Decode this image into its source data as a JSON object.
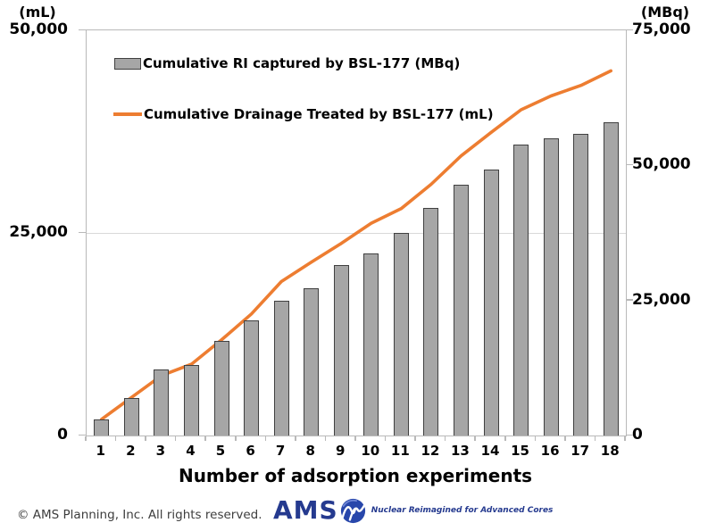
{
  "axes": {
    "left": {
      "unit": "(mL)",
      "ticks": [
        "50,000",
        "25,000",
        "0"
      ]
    },
    "right": {
      "unit": "(MBq)",
      "ticks": [
        "75,000",
        "50,000",
        "25,000",
        "0"
      ]
    },
    "x": {
      "title": "Number of adsorption experiments"
    }
  },
  "legend": {
    "bar_label": "Cumulative RI captured by BSL-177 (MBq)",
    "line_label": "Cumulative Drainage Treated by BSL-177 (mL)"
  },
  "chart_data": {
    "type": "combo bar+line, dual axis",
    "categories": [
      "1",
      "2",
      "3",
      "4",
      "5",
      "6",
      "7",
      "8",
      "9",
      "10",
      "11",
      "12",
      "13",
      "14",
      "15",
      "16",
      "17",
      "18"
    ],
    "series": [
      {
        "name": "Cumulative RI captured by BSL-177 (MBq)",
        "type": "bar",
        "axis": "right",
        "color": "#a6a6a6",
        "border_color": "#404040",
        "values": [
          2900,
          7000,
          12300,
          13000,
          17500,
          21300,
          24900,
          27300,
          31600,
          33700,
          37500,
          42200,
          46500,
          49200,
          53800,
          55000,
          55800,
          58000
        ]
      },
      {
        "name": "Cumulative Drainage Treated by BSL-177 (mL)",
        "type": "line",
        "axis": "left",
        "color": "#ed7d31",
        "values": [
          2000,
          4700,
          7400,
          8800,
          11800,
          15000,
          19000,
          21400,
          23700,
          26200,
          28000,
          31000,
          34500,
          37400,
          40200,
          41900,
          43200,
          45000
        ]
      }
    ],
    "left_axis": {
      "label": "(mL)",
      "range": [
        0,
        50000
      ],
      "tick_step": 25000
    },
    "right_axis": {
      "label": "(MBq)",
      "range": [
        0,
        75000
      ],
      "tick_step": 25000
    },
    "xlabel": "Number of adsorption experiments",
    "grid": "horizontal gridline at left-axis 25,000; full plot border",
    "legend_position": "inside top-left"
  },
  "footer": {
    "copyright": "© AMS Planning, Inc. All rights reserved.",
    "logo_text": "AMS",
    "logo_tagline": "Nuclear Reimagined for Advanced Cores"
  },
  "colors": {
    "bar_fill": "#a6a6a6",
    "bar_border": "#404040",
    "line": "#ed7d31",
    "plot_border": "#b9b9b9",
    "gridline": "#d9d9d9",
    "logo_blue": "#253a8f",
    "copyright_text": "#3d3d3d"
  }
}
